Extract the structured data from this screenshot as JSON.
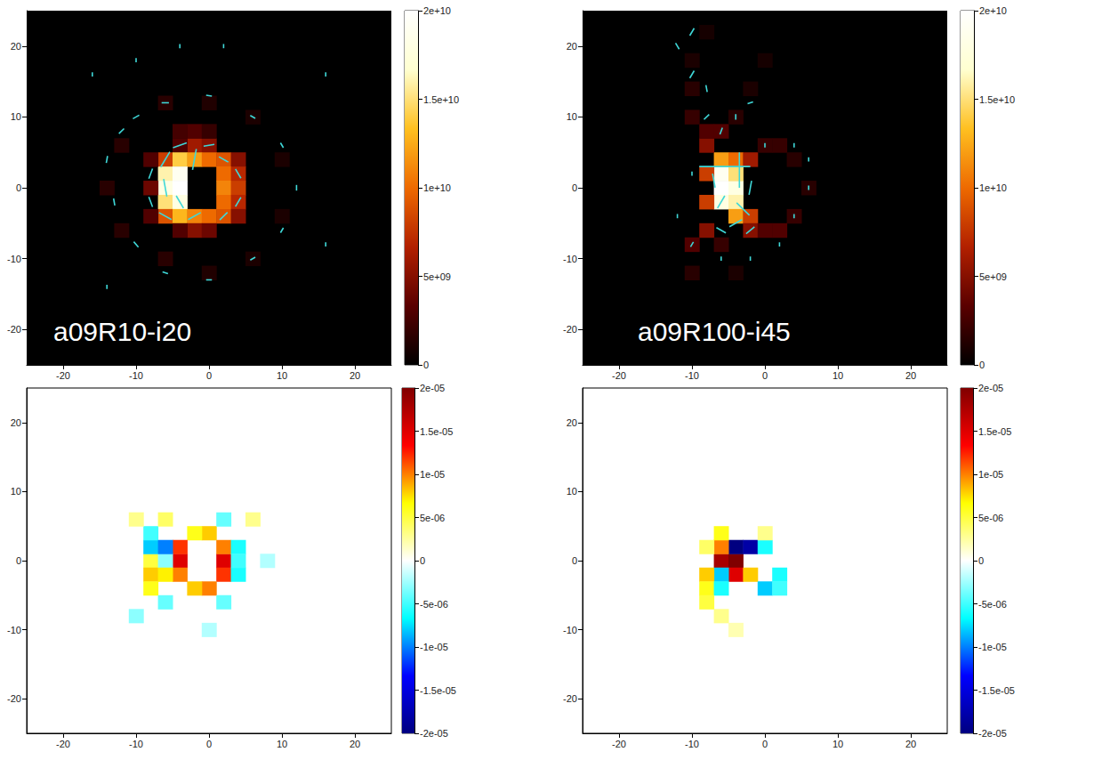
{
  "chart_data": [
    {
      "type": "heatmap",
      "title": "a09R10-i20",
      "xlim": [
        -25,
        25
      ],
      "ylim": [
        -25,
        25
      ],
      "xticks": [
        -20,
        -10,
        0,
        10,
        20
      ],
      "yticks": [
        -20,
        -10,
        0,
        10,
        20
      ],
      "cell_size": 2,
      "cells": [
        [
          -2,
          6,
          6000000000.0
        ],
        [
          0,
          6,
          5000000000.0
        ],
        [
          -4,
          6,
          3000000000.0
        ],
        [
          -6,
          4,
          8000000000.0
        ],
        [
          -4,
          4,
          14000000000.0
        ],
        [
          -2,
          4,
          12000000000.0
        ],
        [
          0,
          4,
          10000000000.0
        ],
        [
          2,
          4,
          9000000000.0
        ],
        [
          4,
          4,
          5000000000.0
        ],
        [
          -6,
          2,
          16000000000.0
        ],
        [
          -4,
          2,
          19000000000.0
        ],
        [
          2,
          2,
          10000000000.0
        ],
        [
          4,
          2,
          7000000000.0
        ],
        [
          -6,
          0,
          18000000000.0
        ],
        [
          -4,
          0,
          20000000000.0
        ],
        [
          2,
          0,
          11000000000.0
        ],
        [
          4,
          0,
          8000000000.0
        ],
        [
          -6,
          -2,
          15000000000.0
        ],
        [
          -4,
          -2,
          18000000000.0
        ],
        [
          2,
          -2,
          10000000000.0
        ],
        [
          4,
          -2,
          7000000000.0
        ],
        [
          -6,
          -4,
          9000000000.0
        ],
        [
          -4,
          -4,
          13000000000.0
        ],
        [
          -2,
          -4,
          11000000000.0
        ],
        [
          0,
          -4,
          10000000000.0
        ],
        [
          2,
          -4,
          9000000000.0
        ],
        [
          4,
          -4,
          5000000000.0
        ],
        [
          -2,
          -6,
          5000000000.0
        ],
        [
          0,
          -6,
          4000000000.0
        ],
        [
          -4,
          -6,
          3000000000.0
        ],
        [
          -2,
          8,
          3000000000.0
        ],
        [
          -4,
          8,
          2500000000.0
        ],
        [
          0,
          8,
          2000000000.0
        ],
        [
          -8,
          0,
          4000000000.0
        ],
        [
          -8,
          4,
          3000000000.0
        ],
        [
          -8,
          -4,
          3000000000.0
        ],
        [
          -12,
          6,
          1500000000.0
        ],
        [
          -14,
          0,
          1500000000.0
        ],
        [
          -12,
          -6,
          1500000000.0
        ],
        [
          -6,
          12,
          1500000000.0
        ],
        [
          0,
          12,
          1200000000.0
        ],
        [
          6,
          10,
          1000000000.0
        ],
        [
          10,
          4,
          1000000000.0
        ],
        [
          10,
          -4,
          1000000000.0
        ],
        [
          6,
          -10,
          1000000000.0
        ],
        [
          0,
          -12,
          1200000000.0
        ],
        [
          -6,
          -10,
          1500000000.0
        ]
      ],
      "colorbar": {
        "lim": [
          0,
          20000000000.0
        ],
        "ticks": [
          0,
          {
            "value": 5000000000.0,
            "label": "5e+09"
          },
          {
            "value": 10000000000.0,
            "label": "1e+10"
          },
          {
            "value": 15000000000.0,
            "label": "1.5e+10"
          },
          {
            "value": 20000000000.0,
            "label": "2e+10"
          }
        ]
      },
      "vectors": {
        "color": "#3fd8d8",
        "values": [
          [
            -6,
            4,
            60,
            2.5
          ],
          [
            -4,
            6,
            20,
            2
          ],
          [
            -2,
            4,
            80,
            3
          ],
          [
            -6,
            0,
            100,
            2.5
          ],
          [
            -4,
            -2,
            120,
            2
          ],
          [
            -6,
            -4,
            150,
            2
          ],
          [
            -2,
            -4,
            30,
            2
          ],
          [
            0,
            6,
            10,
            1.5
          ],
          [
            2,
            4,
            150,
            1.5
          ],
          [
            4,
            2,
            120,
            1.5
          ],
          [
            4,
            -2,
            60,
            1.5
          ],
          [
            2,
            -4,
            45,
            1.5
          ],
          [
            -8,
            2,
            70,
            1.5
          ],
          [
            -8,
            -2,
            110,
            1.5
          ],
          [
            -12,
            8,
            45,
            1
          ],
          [
            -10,
            10,
            30,
            1
          ],
          [
            -6,
            12,
            0,
            1
          ],
          [
            0,
            13,
            170,
            0.8
          ],
          [
            6,
            10,
            150,
            0.8
          ],
          [
            10,
            6,
            120,
            0.8
          ],
          [
            12,
            0,
            90,
            0.8
          ],
          [
            10,
            -6,
            60,
            0.8
          ],
          [
            6,
            -10,
            30,
            0.8
          ],
          [
            0,
            -13,
            0,
            0.8
          ],
          [
            -6,
            -12,
            160,
            0.8
          ],
          [
            -10,
            -8,
            130,
            1
          ],
          [
            -13,
            -2,
            100,
            1
          ],
          [
            -14,
            4,
            80,
            1
          ],
          [
            -16,
            16,
            90,
            0.6
          ],
          [
            -10,
            18,
            90,
            0.6
          ],
          [
            -4,
            20,
            90,
            0.6
          ],
          [
            2,
            20,
            90,
            0.6
          ],
          [
            16,
            16,
            90,
            0.6
          ],
          [
            16,
            -8,
            90,
            0.6
          ],
          [
            -14,
            -14,
            90,
            0.6
          ]
        ]
      }
    },
    {
      "type": "heatmap",
      "title": "a09R100-i45",
      "xlim": [
        -25,
        25
      ],
      "ylim": [
        -25,
        25
      ],
      "xticks": [
        -20,
        -10,
        0,
        10,
        20
      ],
      "yticks": [
        -20,
        -10,
        0,
        10,
        20
      ],
      "cell_size": 2,
      "cells": [
        [
          -6,
          0,
          20000000000.0
        ],
        [
          -4,
          0,
          18000000000.0
        ],
        [
          -6,
          2,
          19000000000.0
        ],
        [
          -4,
          2,
          15000000000.0
        ],
        [
          -6,
          -2,
          18000000000.0
        ],
        [
          -4,
          -2,
          16000000000.0
        ],
        [
          -6,
          4,
          12000000000.0
        ],
        [
          -4,
          4,
          10000000000.0
        ],
        [
          -4,
          -4,
          12000000000.0
        ],
        [
          -2,
          -4,
          8000000000.0
        ],
        [
          -2,
          4,
          6000000000.0
        ],
        [
          -8,
          2,
          8000000000.0
        ],
        [
          -8,
          -2,
          8000000000.0
        ],
        [
          -2,
          -6,
          5000000000.0
        ],
        [
          0,
          -6,
          3000000000.0
        ],
        [
          0,
          6,
          2000000000.0
        ],
        [
          2,
          6,
          2000000000.0
        ],
        [
          4,
          4,
          1500000000.0
        ],
        [
          6,
          0,
          1500000000.0
        ],
        [
          4,
          -4,
          2000000000.0
        ],
        [
          2,
          -6,
          3000000000.0
        ],
        [
          -8,
          6,
          5000000000.0
        ],
        [
          -8,
          8,
          3000000000.0
        ],
        [
          -10,
          10,
          2000000000.0
        ],
        [
          -10,
          14,
          1500000000.0
        ],
        [
          -10,
          18,
          1000000000.0
        ],
        [
          -8,
          22,
          800000000.0
        ],
        [
          -6,
          8,
          3000000000.0
        ],
        [
          -4,
          10,
          1500000000.0
        ],
        [
          -2,
          14,
          1000000000.0
        ],
        [
          0,
          18,
          800000000.0
        ],
        [
          -8,
          -6,
          5000000000.0
        ],
        [
          -10,
          -8,
          3000000000.0
        ],
        [
          -10,
          -12,
          1500000000.0
        ],
        [
          -6,
          -8,
          2000000000.0
        ],
        [
          -4,
          -12,
          1000000000.0
        ]
      ],
      "colorbar": {
        "lim": [
          0,
          20000000000.0
        ],
        "ticks": [
          0,
          {
            "value": 5000000000.0,
            "label": "5e+09"
          },
          {
            "value": 10000000000.0,
            "label": "1e+10"
          },
          {
            "value": 15000000000.0,
            "label": "1.5e+10"
          },
          {
            "value": 20000000000.0,
            "label": "2e+10"
          }
        ]
      },
      "vectors": {
        "color": "#3fd8d8",
        "values": [
          [
            -5.5,
            3,
            0,
            7
          ],
          [
            -3.5,
            2.5,
            90,
            5
          ],
          [
            -6,
            -2,
            60,
            2
          ],
          [
            -3,
            -3,
            135,
            2.5
          ],
          [
            -4,
            -5,
            30,
            2
          ],
          [
            -2,
            0,
            80,
            2
          ],
          [
            -7,
            1,
            100,
            2
          ],
          [
            -2,
            -6,
            40,
            1.5
          ],
          [
            -6,
            -6,
            150,
            1.5
          ],
          [
            -10,
            22,
            60,
            1.2
          ],
          [
            -12,
            20,
            120,
            1
          ],
          [
            -10,
            16,
            60,
            1.2
          ],
          [
            -8,
            14,
            100,
            1
          ],
          [
            -8,
            10,
            45,
            1
          ],
          [
            -6,
            8,
            70,
            1
          ],
          [
            -4,
            10,
            90,
            0.8
          ],
          [
            -2,
            12,
            20,
            0.8
          ],
          [
            0,
            6,
            90,
            0.6
          ],
          [
            4,
            6,
            90,
            0.6
          ],
          [
            6,
            4,
            90,
            0.6
          ],
          [
            2,
            -8,
            90,
            0.6
          ],
          [
            -2,
            -10,
            90,
            0.6
          ],
          [
            -6,
            -10,
            90,
            0.6
          ],
          [
            -10,
            -8,
            60,
            0.8
          ],
          [
            -12,
            -4,
            90,
            0.6
          ],
          [
            -10,
            2,
            90,
            0.6
          ],
          [
            4,
            -4,
            90,
            0.6
          ],
          [
            6,
            0,
            90,
            0.6
          ]
        ]
      }
    },
    {
      "type": "heatmap",
      "xlim": [
        -25,
        25
      ],
      "ylim": [
        -25,
        25
      ],
      "xticks": [
        -20,
        -10,
        0,
        10,
        20
      ],
      "yticks": [
        -20,
        -10,
        0,
        10,
        20
      ],
      "cell_size": 2,
      "cells": [
        [
          2,
          0,
          1.5e-05
        ],
        [
          2,
          2,
          1e-05
        ],
        [
          2,
          -2,
          1.2e-05
        ],
        [
          0,
          4,
          8e-06
        ],
        [
          -2,
          4,
          6e-06
        ],
        [
          0,
          -4,
          1e-05
        ],
        [
          -2,
          -4,
          8e-06
        ],
        [
          -4,
          0,
          1.5e-05
        ],
        [
          -4,
          2,
          1.2e-05
        ],
        [
          -4,
          -2,
          1e-05
        ],
        [
          4,
          2,
          -6e-06
        ],
        [
          4,
          -2,
          -6e-06
        ],
        [
          4,
          0,
          -5e-06
        ],
        [
          2,
          6,
          -4e-06
        ],
        [
          2,
          -6,
          -4e-06
        ],
        [
          -8,
          0,
          5e-06
        ],
        [
          -8,
          2,
          -8e-06
        ],
        [
          -8,
          -2,
          8e-06
        ],
        [
          -8,
          4,
          -5e-06
        ],
        [
          -8,
          -4,
          6e-06
        ],
        [
          -6,
          6,
          4e-06
        ],
        [
          -6,
          -6,
          -4e-06
        ],
        [
          -6,
          0,
          -3e-06
        ],
        [
          -6,
          2,
          -1e-05
        ],
        [
          -6,
          -2,
          7e-06
        ],
        [
          -10,
          -8,
          -3e-06
        ],
        [
          0,
          -10,
          -2e-06
        ],
        [
          6,
          6,
          3e-06
        ],
        [
          8,
          0,
          -2e-06
        ],
        [
          -10,
          6,
          3e-06
        ]
      ],
      "colorbar": {
        "lim": [
          -2e-05,
          2e-05
        ],
        "ticks": [
          {
            "value": -2e-05,
            "label": "-2e-05"
          },
          {
            "value": -1.5e-05,
            "label": "-1.5e-05"
          },
          {
            "value": -1e-05,
            "label": "-1e-05"
          },
          {
            "value": -5e-06,
            "label": "-5e-06"
          },
          0,
          {
            "value": 5e-06,
            "label": "5e-06"
          },
          {
            "value": 1e-05,
            "label": "1e-05"
          },
          {
            "value": 1.5e-05,
            "label": "1.5e-05"
          },
          {
            "value": 2e-05,
            "label": "2e-05"
          }
        ]
      }
    },
    {
      "type": "heatmap",
      "xlim": [
        -25,
        25
      ],
      "ylim": [
        -25,
        25
      ],
      "xticks": [
        -20,
        -10,
        0,
        10,
        20
      ],
      "yticks": [
        -20,
        -10,
        0,
        10,
        20
      ],
      "cell_size": 2,
      "cells": [
        [
          -6,
          0,
          1.8e-05
        ],
        [
          -4,
          0,
          2e-05
        ],
        [
          -4,
          2,
          -2e-05
        ],
        [
          -2,
          2,
          -1.8e-05
        ],
        [
          -4,
          -2,
          1.5e-05
        ],
        [
          -6,
          2,
          1e-05
        ],
        [
          -6,
          -2,
          -8e-06
        ],
        [
          -8,
          -2,
          8e-06
        ],
        [
          -8,
          -4,
          6e-06
        ],
        [
          -6,
          -4,
          -6e-06
        ],
        [
          -8,
          2,
          4e-06
        ],
        [
          -6,
          4,
          6e-06
        ],
        [
          -2,
          -2,
          8e-06
        ],
        [
          0,
          -4,
          -8e-06
        ],
        [
          2,
          -2,
          -6e-06
        ],
        [
          0,
          2,
          -6e-06
        ],
        [
          2,
          -4,
          -5e-06
        ],
        [
          -8,
          -6,
          5e-06
        ],
        [
          -6,
          -8,
          3e-06
        ],
        [
          -4,
          -10,
          2e-06
        ],
        [
          0,
          4,
          3e-06
        ]
      ],
      "colorbar": {
        "lim": [
          -2e-05,
          2e-05
        ],
        "ticks": [
          {
            "value": -2e-05,
            "label": "-2e-05"
          },
          {
            "value": -1.5e-05,
            "label": "-1.5e-05"
          },
          {
            "value": -1e-05,
            "label": "-1e-05"
          },
          {
            "value": -5e-06,
            "label": "-5e-06"
          },
          0,
          {
            "value": 5e-06,
            "label": "5e-06"
          },
          {
            "value": 1e-05,
            "label": "1e-05"
          },
          {
            "value": 1.5e-05,
            "label": "1.5e-05"
          },
          {
            "value": 2e-05,
            "label": "2e-05"
          }
        ]
      }
    }
  ]
}
